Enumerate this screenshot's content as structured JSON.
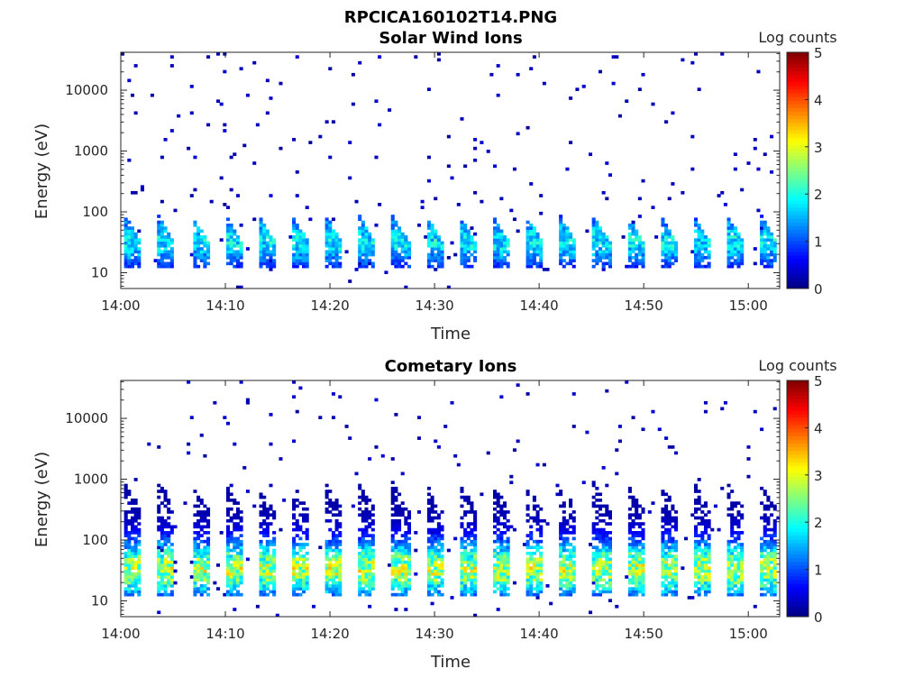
{
  "figure": {
    "title": "RPCICA160102T14.PNG"
  },
  "chart_data": [
    {
      "type": "heatmap",
      "title": "Solar Wind Ions",
      "xlabel": "Time",
      "ylabel": "Energy (eV)",
      "y_scale": "log",
      "ylim": [
        5.5,
        42000
      ],
      "x_range": [
        "14:00",
        "15:03"
      ],
      "x_ticks": [
        "14:00",
        "14:10",
        "14:20",
        "14:30",
        "14:40",
        "14:50",
        "15:00"
      ],
      "y_ticks": [
        {
          "value": 10,
          "label": "10"
        },
        {
          "value": 100,
          "label": "100"
        },
        {
          "value": 1000,
          "label": "1000"
        },
        {
          "value": 10000,
          "label": "10000"
        }
      ],
      "colorbar": {
        "label": "Log counts",
        "range": [
          0,
          5
        ],
        "ticks": [
          0,
          1,
          2,
          3,
          4,
          5
        ],
        "colormap": "jet"
      },
      "scan_period_min": 3.2,
      "burst_energy_range_eV": [
        15,
        90
      ],
      "peak_log_counts": 1.9,
      "background_log_counts": 0.3
    },
    {
      "type": "heatmap",
      "title": "Cometary Ions",
      "xlabel": "Time",
      "ylabel": "Energy (eV)",
      "y_scale": "log",
      "ylim": [
        5.5,
        42000
      ],
      "x_range": [
        "14:00",
        "15:03"
      ],
      "x_ticks": [
        "14:00",
        "14:10",
        "14:20",
        "14:30",
        "14:40",
        "14:50",
        "15:00"
      ],
      "y_ticks": [
        {
          "value": 10,
          "label": "10"
        },
        {
          "value": 100,
          "label": "100"
        },
        {
          "value": 1000,
          "label": "1000"
        },
        {
          "value": 10000,
          "label": "10000"
        }
      ],
      "colorbar": {
        "label": "Log counts",
        "range": [
          0,
          5
        ],
        "ticks": [
          0,
          1,
          2,
          3,
          4,
          5
        ],
        "colormap": "jet"
      },
      "scan_period_min": 3.2,
      "burst_energy_range_eV": [
        15,
        900
      ],
      "peak_log_counts": 3.0,
      "background_log_counts": 0.3
    }
  ]
}
